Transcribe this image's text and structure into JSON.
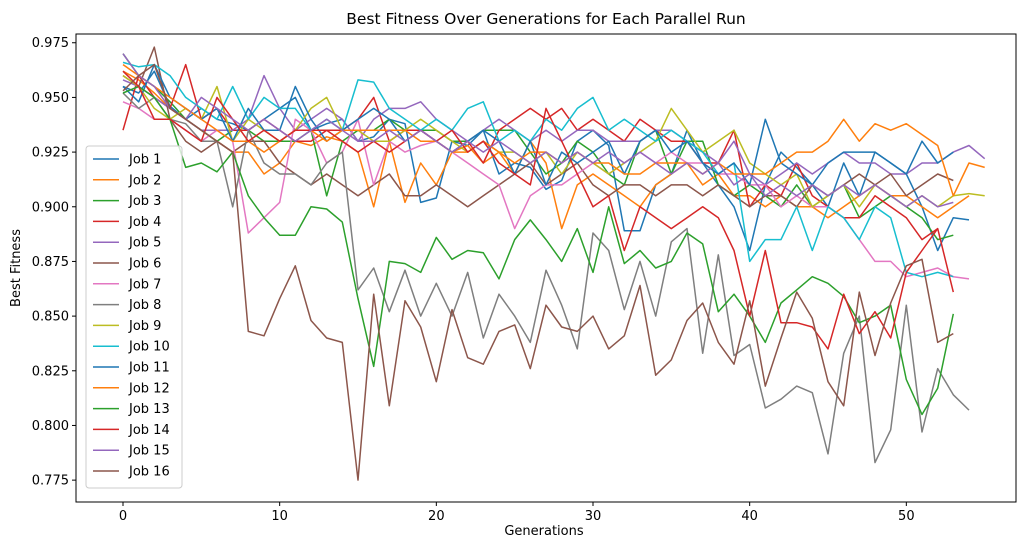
{
  "chart_data": {
    "type": "line",
    "title": "Best Fitness Over Generations for Each Parallel Run",
    "xlabel": "Generations",
    "ylabel": "Best Fitness",
    "xlim": [
      -3,
      57
    ],
    "ylim": [
      0.765,
      0.979
    ],
    "xticks": [
      0,
      10,
      20,
      30,
      40,
      50
    ],
    "yticks": [
      0.775,
      0.8,
      0.825,
      0.85,
      0.875,
      0.9,
      0.925,
      0.95,
      0.975
    ],
    "ytick_labels": [
      "0.775",
      "0.800",
      "0.825",
      "0.850",
      "0.875",
      "0.900",
      "0.925",
      "0.950",
      "0.975"
    ],
    "grid": false,
    "legend_position": "left",
    "series": [
      {
        "name": "Job 1",
        "color": "#1f77b4",
        "values": [
          0.955,
          0.952,
          0.962,
          0.946,
          0.94,
          0.945,
          0.94,
          0.938,
          0.935,
          0.94,
          0.945,
          0.95,
          0.935,
          0.938,
          0.94,
          0.93,
          0.932,
          0.94,
          0.938,
          0.902,
          0.904,
          0.93,
          0.928,
          0.935,
          0.915,
          0.92,
          0.918,
          0.908,
          0.912,
          0.93,
          0.935,
          0.928,
          0.889,
          0.889,
          0.91,
          0.915,
          0.935,
          0.92,
          0.91,
          0.9,
          0.88,
          0.91,
          0.925,
          0.918,
          0.91,
          0.9,
          0.92,
          0.905,
          0.925,
          0.92,
          0.915,
          0.9,
          0.88,
          0.895,
          0.894
        ]
      },
      {
        "name": "Job 2",
        "color": "#ff7f0e",
        "values": [
          0.962,
          0.958,
          0.952,
          0.945,
          0.94,
          0.935,
          0.93,
          0.925,
          0.925,
          0.915,
          0.92,
          0.93,
          0.928,
          0.932,
          0.93,
          0.925,
          0.9,
          0.93,
          0.902,
          0.92,
          0.91,
          0.925,
          0.928,
          0.92,
          0.925,
          0.915,
          0.93,
          0.92,
          0.89,
          0.91,
          0.915,
          0.91,
          0.905,
          0.9,
          0.91,
          0.915,
          0.92,
          0.91,
          0.915,
          0.905,
          0.905,
          0.9,
          0.905,
          0.9,
          0.9,
          0.895,
          0.9,
          0.905,
          0.91,
          0.905,
          0.905,
          0.9,
          0.895,
          0.9,
          0.905
        ]
      },
      {
        "name": "Job 3",
        "color": "#2ca02c",
        "values": [
          0.97,
          0.96,
          0.955,
          0.948,
          0.94,
          0.935,
          0.93,
          0.935,
          0.935,
          0.93,
          0.93,
          0.93,
          0.935,
          0.905,
          0.93,
          0.935,
          0.935,
          0.94,
          0.935,
          0.935,
          0.935,
          0.93,
          0.93,
          0.935,
          0.935,
          0.935,
          0.925,
          0.915,
          0.92,
          0.93,
          0.925,
          0.915,
          0.91,
          0.93,
          0.935,
          0.915,
          0.93,
          0.93,
          0.91,
          0.905,
          0.91,
          0.905,
          0.9,
          0.91,
          0.9,
          0.905,
          0.91,
          0.895,
          0.9,
          0.905,
          0.9,
          0.895,
          0.885,
          0.887
        ]
      },
      {
        "name": "Job 4",
        "color": "#d62728",
        "values": [
          0.935,
          0.96,
          0.95,
          0.945,
          0.965,
          0.94,
          0.945,
          0.935,
          0.935,
          0.94,
          0.935,
          0.93,
          0.93,
          0.935,
          0.935,
          0.94,
          0.95,
          0.93,
          0.935,
          0.935,
          0.93,
          0.925,
          0.93,
          0.92,
          0.935,
          0.94,
          0.945,
          0.94,
          0.945,
          0.935,
          0.94,
          0.935,
          0.93,
          0.94,
          0.935,
          0.93,
          0.93,
          0.92,
          0.92,
          0.935,
          0.9,
          0.91,
          0.905,
          0.92,
          0.905,
          0.9,
          0.895,
          0.895,
          0.905,
          0.9,
          0.895,
          0.885,
          0.89
        ]
      },
      {
        "name": "Job 5",
        "color": "#9467bd",
        "values": [
          0.958,
          0.955,
          0.95,
          0.945,
          0.94,
          0.935,
          0.935,
          0.935,
          0.94,
          0.96,
          0.945,
          0.935,
          0.94,
          0.945,
          0.94,
          0.93,
          0.94,
          0.945,
          0.945,
          0.948,
          0.94,
          0.935,
          0.93,
          0.935,
          0.94,
          0.935,
          0.93,
          0.935,
          0.93,
          0.935,
          0.935,
          0.93,
          0.93,
          0.93,
          0.935,
          0.935,
          0.93,
          0.925,
          0.92,
          0.93,
          0.915,
          0.91,
          0.915,
          0.92,
          0.915,
          0.92,
          0.925,
          0.92,
          0.92,
          0.915,
          0.915,
          0.92,
          0.92,
          0.925,
          0.928,
          0.922
        ]
      },
      {
        "name": "Job 6",
        "color": "#8c564b",
        "values": [
          0.96,
          0.955,
          0.973,
          0.94,
          0.93,
          0.925,
          0.93,
          0.925,
          0.93,
          0.93,
          0.92,
          0.915,
          0.91,
          0.915,
          0.91,
          0.905,
          0.91,
          0.915,
          0.905,
          0.905,
          0.91,
          0.905,
          0.9,
          0.905,
          0.91,
          0.915,
          0.92,
          0.91,
          0.915,
          0.92,
          0.91,
          0.905,
          0.91,
          0.91,
          0.905,
          0.91,
          0.91,
          0.905,
          0.91,
          0.905,
          0.9,
          0.905,
          0.905,
          0.9,
          0.91,
          0.905,
          0.91,
          0.915,
          0.91,
          0.915,
          0.905,
          0.91,
          0.915,
          0.912
        ]
      },
      {
        "name": "Job 7",
        "color": "#e377c2",
        "values": [
          0.948,
          0.945,
          0.94,
          0.94,
          0.935,
          0.93,
          0.935,
          0.93,
          0.888,
          0.895,
          0.902,
          0.94,
          0.935,
          0.92,
          0.925,
          0.94,
          0.91,
          0.93,
          0.925,
          0.928,
          0.93,
          0.925,
          0.92,
          0.915,
          0.91,
          0.89,
          0.905,
          0.91,
          0.91,
          0.915,
          0.92,
          0.915,
          0.92,
          0.925,
          0.92,
          0.925,
          0.92,
          0.92,
          0.915,
          0.915,
          0.91,
          0.91,
          0.9,
          0.905,
          0.9,
          0.9,
          0.895,
          0.885,
          0.875,
          0.875,
          0.868,
          0.87,
          0.872,
          0.868,
          0.867
        ]
      },
      {
        "name": "Job 8",
        "color": "#7f7f7f",
        "values": [
          0.952,
          0.945,
          0.95,
          0.94,
          0.938,
          0.93,
          0.93,
          0.9,
          0.935,
          0.92,
          0.915,
          0.915,
          0.91,
          0.92,
          0.925,
          0.862,
          0.872,
          0.852,
          0.871,
          0.85,
          0.865,
          0.85,
          0.87,
          0.84,
          0.86,
          0.85,
          0.838,
          0.871,
          0.855,
          0.835,
          0.888,
          0.88,
          0.853,
          0.875,
          0.85,
          0.884,
          0.89,
          0.833,
          0.878,
          0.832,
          0.837,
          0.808,
          0.812,
          0.818,
          0.815,
          0.787,
          0.833,
          0.85,
          0.783,
          0.798,
          0.855,
          0.797,
          0.826,
          0.814,
          0.807
        ]
      },
      {
        "name": "Job 9",
        "color": "#bcbd22",
        "values": [
          0.96,
          0.955,
          0.945,
          0.94,
          0.945,
          0.94,
          0.955,
          0.93,
          0.94,
          0.935,
          0.93,
          0.935,
          0.945,
          0.95,
          0.935,
          0.935,
          0.93,
          0.93,
          0.935,
          0.94,
          0.935,
          0.93,
          0.925,
          0.93,
          0.925,
          0.925,
          0.92,
          0.925,
          0.915,
          0.925,
          0.92,
          0.915,
          0.92,
          0.925,
          0.93,
          0.945,
          0.935,
          0.925,
          0.93,
          0.935,
          0.92,
          0.915,
          0.91,
          0.915,
          0.9,
          0.905,
          0.91,
          0.9,
          0.91,
          0.905,
          0.9,
          0.905,
          0.9,
          0.905,
          0.906,
          0.905
        ]
      },
      {
        "name": "Job 10",
        "color": "#17becf",
        "values": [
          0.966,
          0.964,
          0.965,
          0.96,
          0.95,
          0.945,
          0.94,
          0.955,
          0.94,
          0.95,
          0.945,
          0.945,
          0.935,
          0.94,
          0.935,
          0.958,
          0.957,
          0.945,
          0.94,
          0.935,
          0.94,
          0.935,
          0.945,
          0.948,
          0.93,
          0.935,
          0.93,
          0.94,
          0.935,
          0.945,
          0.95,
          0.935,
          0.94,
          0.935,
          0.93,
          0.935,
          0.93,
          0.925,
          0.915,
          0.92,
          0.875,
          0.885,
          0.885,
          0.9,
          0.88,
          0.9,
          0.895,
          0.885,
          0.9,
          0.895,
          0.87,
          0.868,
          0.87,
          0.868
        ]
      },
      {
        "name": "Job 11",
        "color": "#1f77b4",
        "values": [
          0.955,
          0.948,
          0.965,
          0.95,
          0.945,
          0.94,
          0.945,
          0.93,
          0.945,
          0.935,
          0.935,
          0.955,
          0.94,
          0.93,
          0.935,
          0.94,
          0.945,
          0.94,
          0.93,
          0.935,
          0.93,
          0.925,
          0.93,
          0.935,
          0.93,
          0.915,
          0.93,
          0.91,
          0.925,
          0.92,
          0.925,
          0.93,
          0.915,
          0.93,
          0.935,
          0.925,
          0.93,
          0.92,
          0.915,
          0.92,
          0.91,
          0.94,
          0.92,
          0.915,
          0.91,
          0.92,
          0.925,
          0.925,
          0.925,
          0.92,
          0.915,
          0.93,
          0.92,
          0.925
        ]
      },
      {
        "name": "Job 12",
        "color": "#ff7f0e",
        "values": [
          0.965,
          0.96,
          0.955,
          0.95,
          0.945,
          0.94,
          0.935,
          0.93,
          0.93,
          0.925,
          0.93,
          0.935,
          0.935,
          0.93,
          0.935,
          0.935,
          0.935,
          0.935,
          0.935,
          0.93,
          0.93,
          0.925,
          0.925,
          0.93,
          0.925,
          0.92,
          0.925,
          0.925,
          0.92,
          0.925,
          0.92,
          0.92,
          0.915,
          0.915,
          0.92,
          0.92,
          0.92,
          0.915,
          0.92,
          0.915,
          0.915,
          0.915,
          0.92,
          0.925,
          0.925,
          0.93,
          0.94,
          0.93,
          0.938,
          0.935,
          0.938,
          0.933,
          0.928,
          0.905,
          0.92,
          0.918
        ]
      },
      {
        "name": "Job 13",
        "color": "#2ca02c",
        "values": [
          0.952,
          0.955,
          0.95,
          0.94,
          0.918,
          0.92,
          0.916,
          0.925,
          0.905,
          0.895,
          0.887,
          0.887,
          0.9,
          0.899,
          0.893,
          0.858,
          0.827,
          0.875,
          0.874,
          0.87,
          0.886,
          0.876,
          0.88,
          0.879,
          0.867,
          0.885,
          0.894,
          0.885,
          0.875,
          0.89,
          0.87,
          0.9,
          0.874,
          0.88,
          0.872,
          0.875,
          0.888,
          0.883,
          0.852,
          0.86,
          0.85,
          0.838,
          0.856,
          0.862,
          0.868,
          0.865,
          0.859,
          0.847,
          0.85,
          0.855,
          0.821,
          0.805,
          0.817,
          0.851
        ]
      },
      {
        "name": "Job 14",
        "color": "#d62728",
        "values": [
          0.962,
          0.955,
          0.94,
          0.94,
          0.935,
          0.93,
          0.95,
          0.94,
          0.93,
          0.935,
          0.93,
          0.935,
          0.935,
          0.935,
          0.93,
          0.925,
          0.93,
          0.925,
          0.93,
          0.935,
          0.93,
          0.935,
          0.925,
          0.93,
          0.92,
          0.915,
          0.91,
          0.945,
          0.93,
          0.915,
          0.9,
          0.905,
          0.88,
          0.9,
          0.895,
          0.89,
          0.895,
          0.9,
          0.895,
          0.88,
          0.85,
          0.88,
          0.847,
          0.847,
          0.845,
          0.835,
          0.86,
          0.842,
          0.852,
          0.84,
          0.87,
          0.88,
          0.89,
          0.861
        ]
      },
      {
        "name": "Job 15",
        "color": "#9467bd",
        "values": [
          0.97,
          0.96,
          0.955,
          0.945,
          0.94,
          0.95,
          0.945,
          0.94,
          0.935,
          0.94,
          0.935,
          0.93,
          0.935,
          0.94,
          0.935,
          0.93,
          0.93,
          0.935,
          0.93,
          0.935,
          0.93,
          0.925,
          0.93,
          0.925,
          0.93,
          0.925,
          0.92,
          0.925,
          0.92,
          0.925,
          0.92,
          0.925,
          0.92,
          0.925,
          0.92,
          0.915,
          0.92,
          0.915,
          0.92,
          0.91,
          0.915,
          0.905,
          0.91,
          0.905,
          0.91,
          0.905,
          0.91,
          0.905,
          0.91,
          0.905,
          0.9,
          0.905,
          0.9,
          0.902
        ]
      },
      {
        "name": "Job 16",
        "color": "#8c564b",
        "values": [
          0.953,
          0.96,
          0.965,
          0.945,
          0.94,
          0.935,
          0.93,
          0.925,
          0.843,
          0.841,
          0.858,
          0.873,
          0.848,
          0.84,
          0.838,
          0.775,
          0.86,
          0.809,
          0.857,
          0.845,
          0.82,
          0.853,
          0.831,
          0.828,
          0.843,
          0.846,
          0.826,
          0.855,
          0.845,
          0.843,
          0.85,
          0.835,
          0.841,
          0.864,
          0.823,
          0.83,
          0.848,
          0.856,
          0.838,
          0.828,
          0.857,
          0.818,
          0.84,
          0.861,
          0.849,
          0.82,
          0.809,
          0.861,
          0.832,
          0.856,
          0.873,
          0.876,
          0.838,
          0.842
        ]
      }
    ]
  }
}
